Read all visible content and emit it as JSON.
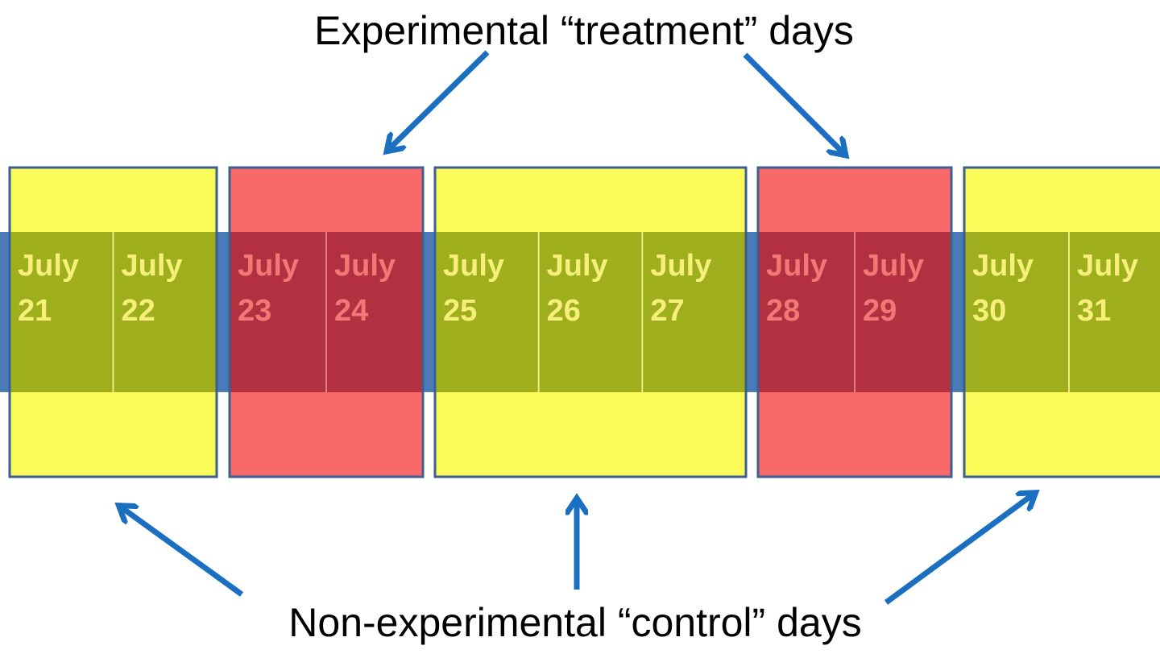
{
  "header": {
    "title": "Experimental “treatment” days"
  },
  "footer": {
    "title": "Non-experimental “control” days"
  },
  "groups": [
    {
      "color": "yellow",
      "days": [
        {
          "month": "July",
          "day": "21"
        },
        {
          "month": "July",
          "day": "22"
        }
      ]
    },
    {
      "color": "red",
      "days": [
        {
          "month": "July",
          "day": "23"
        },
        {
          "month": "July",
          "day": "24"
        }
      ]
    },
    {
      "color": "yellow",
      "days": [
        {
          "month": "July",
          "day": "25"
        },
        {
          "month": "July",
          "day": "26"
        },
        {
          "month": "July",
          "day": "27"
        }
      ]
    },
    {
      "color": "red",
      "days": [
        {
          "month": "July",
          "day": "28"
        },
        {
          "month": "July",
          "day": "29"
        }
      ]
    },
    {
      "color": "yellow",
      "days": [
        {
          "month": "July",
          "day": "30"
        },
        {
          "month": "July",
          "day": "31"
        }
      ]
    }
  ]
}
